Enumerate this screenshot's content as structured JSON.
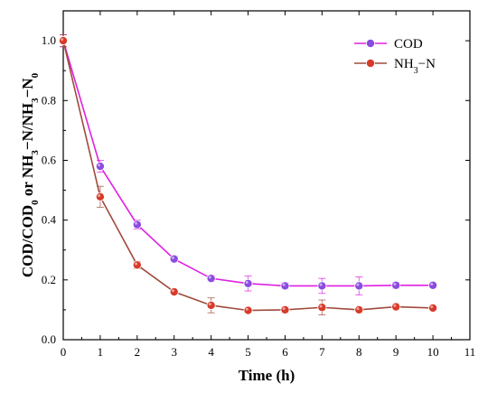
{
  "chart_data": {
    "type": "line",
    "xlabel": "Time  (h)",
    "ylabel": {
      "parts": [
        {
          "t": "COD/COD",
          "sub": false
        },
        {
          "t": "0",
          "sub": true
        },
        {
          "t": " or NH",
          "sub": false
        },
        {
          "t": "3",
          "sub": true
        },
        {
          "t": "−N/NH",
          "sub": false
        },
        {
          "t": "3",
          "sub": true
        },
        {
          "t": "−N",
          "sub": false
        },
        {
          "t": "0",
          "sub": true
        }
      ]
    },
    "xlim": [
      0,
      11
    ],
    "ylim": [
      0,
      1.1
    ],
    "xticks": [
      0,
      1,
      2,
      3,
      4,
      5,
      6,
      7,
      8,
      9,
      10,
      11
    ],
    "xtick_labels": [
      "0",
      "1",
      "2",
      "3",
      "4",
      "5",
      "6",
      "7",
      "8",
      "9",
      "10",
      "11"
    ],
    "yticks": [
      0.0,
      0.2,
      0.4,
      0.6,
      0.8,
      1.0
    ],
    "ytick_labels": [
      "0.0",
      "0.2",
      "0.4",
      "0.6",
      "0.8",
      "1.0"
    ],
    "grid": false,
    "legend_position": "top-right",
    "series": [
      {
        "name": "COD",
        "legend_parts": [
          {
            "t": "COD",
            "sub": false
          }
        ],
        "color": "#e020e0",
        "marker_color": "#8a4be0",
        "x": [
          0,
          1,
          2,
          3,
          4,
          5,
          6,
          7,
          8,
          9,
          10
        ],
        "y": [
          1.0,
          0.58,
          0.385,
          0.27,
          0.205,
          0.188,
          0.18,
          0.18,
          0.18,
          0.182,
          0.182
        ],
        "err": [
          0.02,
          0.02,
          0.015,
          0.01,
          0.01,
          0.025,
          0.01,
          0.025,
          0.03,
          0.01,
          0.008
        ]
      },
      {
        "name": "NH3−N",
        "legend_parts": [
          {
            "t": "NH",
            "sub": false
          },
          {
            "t": "3",
            "sub": true
          },
          {
            "t": "−N",
            "sub": false
          }
        ],
        "color": "#a04a3c",
        "marker_color": "#d83a2a",
        "x": [
          0,
          1,
          2,
          3,
          4,
          5,
          6,
          7,
          8,
          9,
          10
        ],
        "y": [
          1.0,
          0.478,
          0.25,
          0.16,
          0.115,
          0.098,
          0.1,
          0.108,
          0.1,
          0.11,
          0.106
        ],
        "err": [
          0.02,
          0.035,
          0.012,
          0.008,
          0.025,
          0.008,
          0.01,
          0.025,
          0.008,
          0.008,
          0.008
        ]
      }
    ]
  }
}
